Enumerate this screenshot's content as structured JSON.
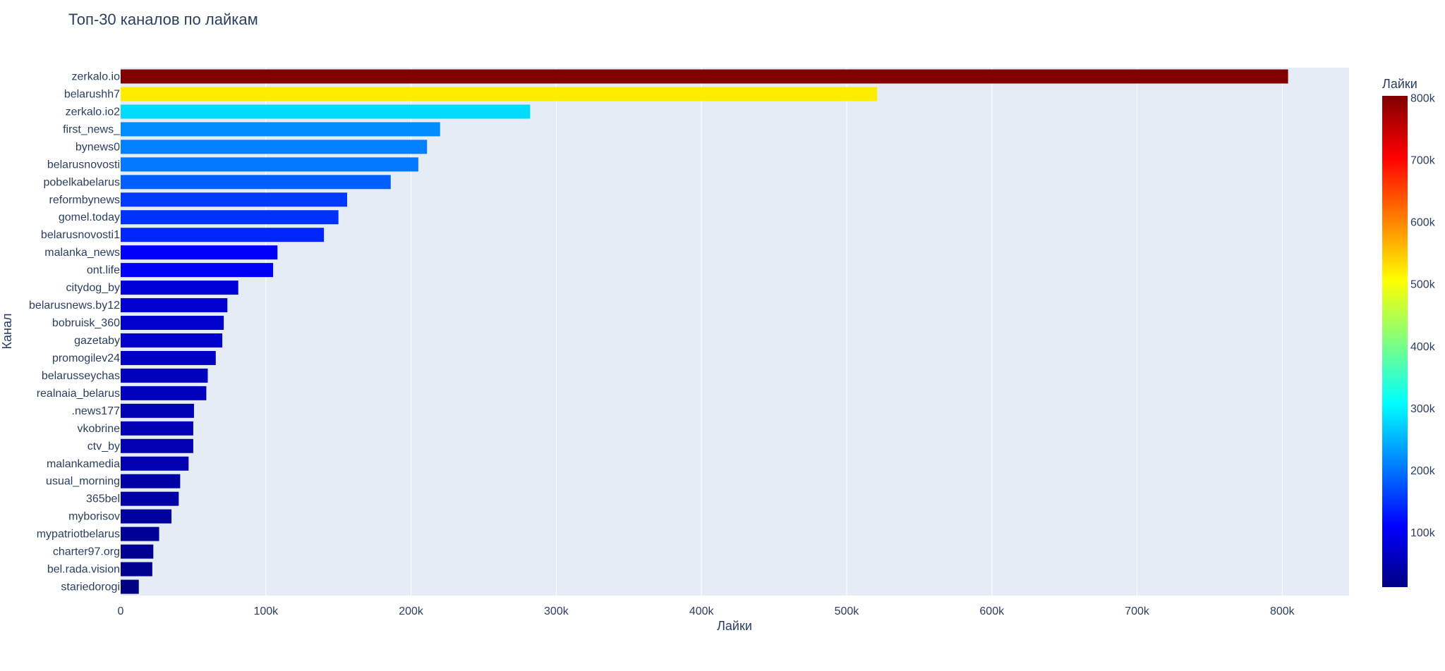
{
  "chart_data": {
    "type": "bar",
    "orientation": "horizontal",
    "title": "Топ-30 каналов по лайкам",
    "xlabel": "Лайки",
    "ylabel": "Канал",
    "xlim": [
      0,
      846000
    ],
    "x_ticks": [
      0,
      100000,
      200000,
      300000,
      400000,
      500000,
      600000,
      700000,
      800000
    ],
    "x_tick_labels": [
      "0",
      "100k",
      "200k",
      "300k",
      "400k",
      "500k",
      "600k",
      "700k",
      "800k"
    ],
    "grid": true,
    "categories": [
      "zerkalo.io",
      "belarushh7",
      "zerkalo.io2",
      "first_news_",
      "bynews0",
      "belarusnovosti",
      "pobelkabelarus",
      "reformbynews",
      "gomel.today",
      "belarusnovosti1",
      "malanka_news",
      "ont.life",
      "citydog_by",
      "belarusnews.by12",
      "bobruisk_360",
      "gazetaby",
      "promogilev24",
      "belarusseychas",
      "realnaia_belarus",
      ".news177",
      "vkobrine",
      "ctv_by",
      "malankamedia",
      "usual_morning",
      "365bel",
      "myborisov",
      "mypatriotbelarus",
      "charter97.org",
      "bel.rada.vision",
      "stariedorogi"
    ],
    "values": [
      804000,
      521000,
      282000,
      220000,
      211000,
      205000,
      186000,
      156000,
      150000,
      140000,
      108000,
      105000,
      81000,
      73500,
      71000,
      70000,
      65500,
      60000,
      59000,
      50500,
      50000,
      50000,
      46800,
      41000,
      40000,
      35000,
      26500,
      22500,
      21800,
      12500
    ],
    "colorbar": {
      "title": "Лайки",
      "colorscale": "Jet",
      "cmin": 12500,
      "cmax": 804000,
      "ticks": [
        100000,
        200000,
        300000,
        400000,
        500000,
        600000,
        700000,
        800000
      ],
      "tick_labels": [
        "100k",
        "200k",
        "300k",
        "400k",
        "500k",
        "600k",
        "700k",
        "800k"
      ]
    },
    "colors": {
      "plot_bg": "#e5ecf6",
      "grid": "#ffffff",
      "text": "#2a3f5f"
    }
  }
}
